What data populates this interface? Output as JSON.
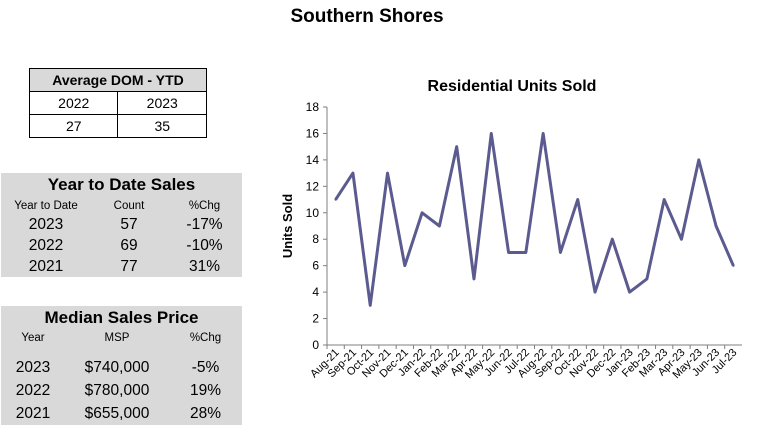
{
  "page_title": "Southern Shores",
  "dom": {
    "title": "Average DOM - YTD",
    "years": [
      "2022",
      "2023"
    ],
    "values": [
      "27",
      "35"
    ]
  },
  "ytd_sales": {
    "title": "Year to Date Sales",
    "columns": [
      "Year to Date",
      "Count",
      "%Chg"
    ],
    "rows": [
      [
        "2023",
        "57",
        "-17%"
      ],
      [
        "2022",
        "69",
        "-10%"
      ],
      [
        "2021",
        "77",
        "31%"
      ]
    ]
  },
  "median_price": {
    "title": "Median Sales Price",
    "columns": [
      "Year",
      "MSP",
      "%Chg"
    ],
    "rows": [
      [
        "2023",
        "$740,000",
        "-5%"
      ],
      [
        "2022",
        "$780,000",
        "19%"
      ],
      [
        "2021",
        "$655,000",
        "28%"
      ]
    ]
  },
  "chart_data": {
    "type": "line",
    "title": "Residential Units Sold",
    "xlabel": "",
    "ylabel": "Units Sold",
    "ylim": [
      0,
      18
    ],
    "yticks": [
      0,
      2,
      4,
      6,
      8,
      10,
      12,
      14,
      16,
      18
    ],
    "grid": false,
    "legend": "none",
    "line_color": "#5b5b8f",
    "categories": [
      "Aug-21",
      "Sep-21",
      "Oct-21",
      "Nov-21",
      "Dec-21",
      "Jan-22",
      "Feb-22",
      "Mar-22",
      "Apr-22",
      "May-22",
      "Jun-22",
      "Jul-22",
      "Aug-22",
      "Sep-22",
      "Oct-22",
      "Nov-22",
      "Dec-22",
      "Jan-23",
      "Feb-23",
      "Mar-23",
      "Apr-23",
      "May-23",
      "Jun-23",
      "Jul-23"
    ],
    "values": [
      11,
      13,
      3,
      13,
      6,
      10,
      9,
      15,
      5,
      16,
      7,
      7,
      16,
      7,
      11,
      4,
      8,
      4,
      5,
      11,
      8,
      14,
      9,
      6
    ]
  }
}
